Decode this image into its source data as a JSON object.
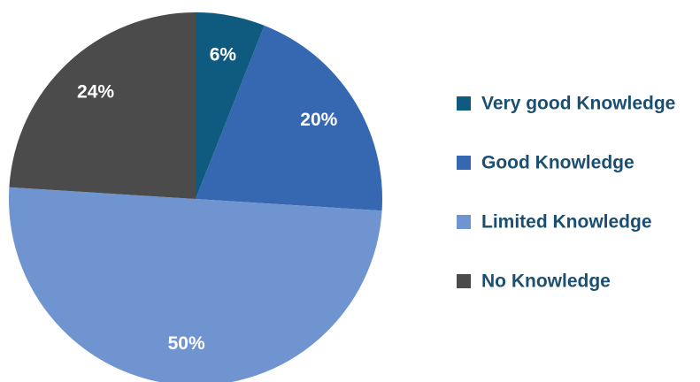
{
  "chart_data": {
    "type": "pie",
    "categories": [
      "Very good Knowledge",
      "Good Knowledge",
      "Limited Knowledge",
      "No Knowledge"
    ],
    "values": [
      6,
      20,
      50,
      24
    ],
    "value_labels": [
      "6%",
      "20%",
      "50%",
      "24%"
    ],
    "colors": [
      "#0f5a7f",
      "#3568b0",
      "#6f94cf",
      "#4b4b4b"
    ],
    "legend": "right"
  }
}
